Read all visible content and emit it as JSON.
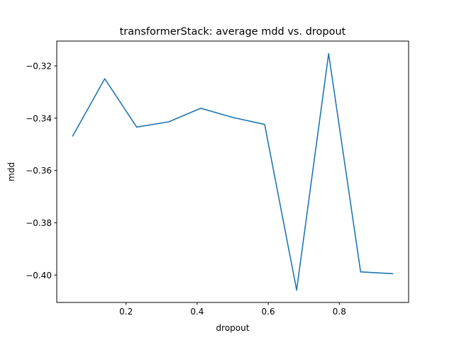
{
  "chart_data": {
    "type": "line",
    "title": "transformerStack: average mdd vs. dropout",
    "xlabel": "dropout",
    "ylabel": "mdd",
    "xlim": [
      0.005,
      0.995
    ],
    "ylim": [
      -0.4105,
      -0.3105
    ],
    "xticks": [
      0.2,
      0.4,
      0.6,
      0.8
    ],
    "xtick_labels": [
      "0.2",
      "0.4",
      "0.6",
      "0.8"
    ],
    "yticks": [
      -0.4,
      -0.38,
      -0.36,
      -0.34,
      -0.32
    ],
    "ytick_labels": [
      "−0.40",
      "−0.38",
      "−0.36",
      "−0.34",
      "−0.32"
    ],
    "grid": false,
    "series": [
      {
        "color": "#1f77b4",
        "x": [
          0.05,
          0.14,
          0.23,
          0.32,
          0.41,
          0.5,
          0.59,
          0.68,
          0.77,
          0.86,
          0.95
        ],
        "y": [
          -0.3468,
          -0.3249,
          -0.3434,
          -0.3414,
          -0.3362,
          -0.3397,
          -0.3424,
          -0.4058,
          -0.3153,
          -0.3988,
          -0.3995
        ]
      }
    ]
  }
}
